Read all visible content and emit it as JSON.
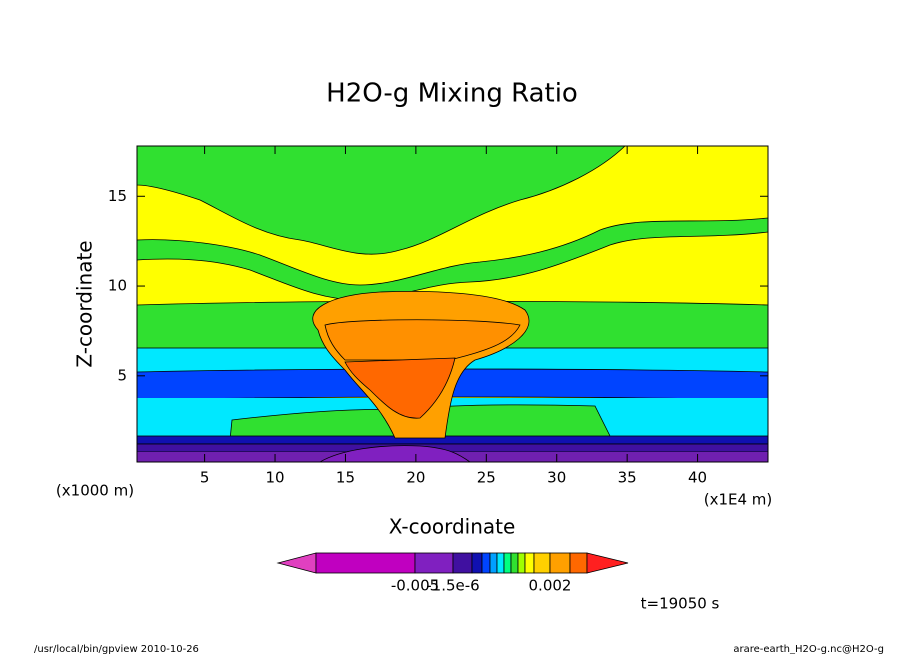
{
  "chart_data": {
    "type": "contour",
    "title": "H2O-g Mixing Ratio",
    "xlabel": "X-coordinate",
    "ylabel": "Z-coordinate",
    "x_unit": "(x1E4 m)",
    "y_unit": "(x1000 m)",
    "xlim": [
      0.2,
      45
    ],
    "ylim": [
      0.2,
      17.8
    ],
    "xticks": [
      5,
      10,
      15,
      20,
      25,
      30,
      35,
      40
    ],
    "yticks": [
      5,
      10,
      15
    ],
    "colorbar": {
      "ticks": [
        -0.005,
        {
          "value": -1.5e-06,
          "label": "-1.5e-6"
        },
        0.002
      ]
    },
    "time_label": "t=19050 s",
    "footer_left": "/usr/local/bin/gpview  2010-10-26",
    "footer_right": "arare-earth_H2O-g.nc@H2O-g"
  }
}
